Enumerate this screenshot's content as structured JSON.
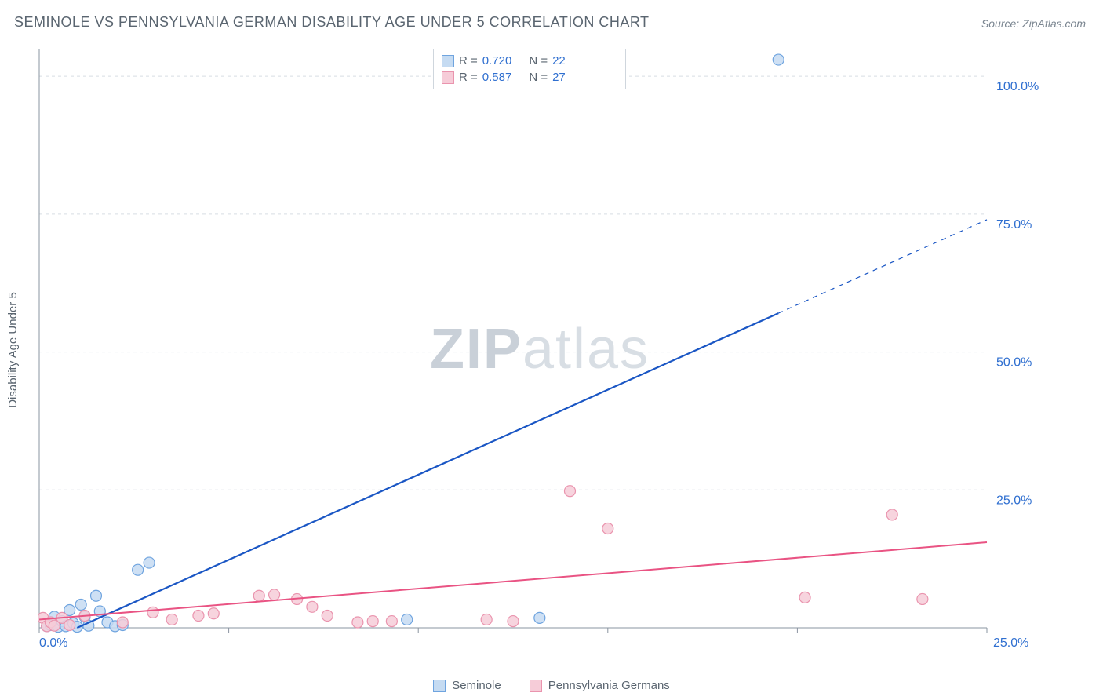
{
  "title": "SEMINOLE VS PENNSYLVANIA GERMAN DISABILITY AGE UNDER 5 CORRELATION CHART",
  "source": "Source: ZipAtlas.com",
  "y_axis_label": "Disability Age Under 5",
  "watermark": {
    "zip": "ZIP",
    "atlas": "atlas"
  },
  "chart": {
    "type": "scatter",
    "xlim": [
      0,
      25
    ],
    "ylim": [
      0,
      105
    ],
    "x_ticks": [
      0,
      5,
      10,
      15,
      20,
      25
    ],
    "y_ticks": [
      25,
      50,
      75,
      100
    ],
    "x_tick_labels": {
      "0": "0.0%",
      "25": "25.0%"
    },
    "y_tick_labels": {
      "25": "25.0%",
      "50": "50.0%",
      "75": "75.0%",
      "100": "100.0%"
    },
    "background_color": "#ffffff",
    "grid_color": "#d8dee4",
    "grid_dash": "4,4",
    "axis_label_color": "#2f6fd0",
    "series": [
      {
        "name": "Seminole",
        "marker_fill": "#c5dbf2",
        "marker_stroke": "#6fa4df",
        "marker_radius": 7,
        "line_color": "#1a56c4",
        "line_width": 2.2,
        "r_value": "0.720",
        "n_value": "22",
        "trend": {
          "x1": 1.0,
          "y1": 0.0,
          "x2": 25.0,
          "y2": 74.0,
          "solid_until_x": 19.5
        },
        "points": [
          [
            0.2,
            0.3
          ],
          [
            0.3,
            0.5
          ],
          [
            0.4,
            2.0
          ],
          [
            0.5,
            0.2
          ],
          [
            0.6,
            1.2
          ],
          [
            0.7,
            0.3
          ],
          [
            0.8,
            3.2
          ],
          [
            0.9,
            0.8
          ],
          [
            1.0,
            0.2
          ],
          [
            1.1,
            4.2
          ],
          [
            1.2,
            2.0
          ],
          [
            1.3,
            0.4
          ],
          [
            1.5,
            5.8
          ],
          [
            1.6,
            3.0
          ],
          [
            1.8,
            1.0
          ],
          [
            2.0,
            0.3
          ],
          [
            2.2,
            0.5
          ],
          [
            2.6,
            10.5
          ],
          [
            2.9,
            11.8
          ],
          [
            9.7,
            1.5
          ],
          [
            13.2,
            1.8
          ],
          [
            19.5,
            103.0
          ]
        ]
      },
      {
        "name": "Pennsylvania Germans",
        "marker_fill": "#f6ccd8",
        "marker_stroke": "#ea94ae",
        "marker_radius": 7,
        "line_color": "#e95383",
        "line_width": 2.0,
        "r_value": "0.587",
        "n_value": "27",
        "trend": {
          "x1": 0.0,
          "y1": 1.5,
          "x2": 25.0,
          "y2": 15.5,
          "solid_until_x": 25.0
        },
        "points": [
          [
            0.1,
            1.8
          ],
          [
            0.2,
            0.3
          ],
          [
            0.3,
            1.0
          ],
          [
            0.4,
            0.4
          ],
          [
            0.6,
            1.8
          ],
          [
            0.8,
            0.5
          ],
          [
            1.2,
            2.2
          ],
          [
            2.2,
            1.0
          ],
          [
            3.0,
            2.8
          ],
          [
            3.5,
            1.5
          ],
          [
            4.2,
            2.2
          ],
          [
            4.6,
            2.6
          ],
          [
            5.8,
            5.8
          ],
          [
            6.2,
            6.0
          ],
          [
            6.8,
            5.2
          ],
          [
            7.2,
            3.8
          ],
          [
            7.6,
            2.2
          ],
          [
            8.4,
            1.0
          ],
          [
            8.8,
            1.2
          ],
          [
            9.3,
            1.2
          ],
          [
            11.8,
            1.5
          ],
          [
            12.5,
            1.2
          ],
          [
            14.0,
            24.8
          ],
          [
            15.0,
            18.0
          ],
          [
            20.2,
            5.5
          ],
          [
            22.5,
            20.5
          ],
          [
            23.3,
            5.2
          ]
        ]
      }
    ]
  },
  "legend": {
    "r_prefix": "R =",
    "n_prefix": "N ="
  },
  "bottom_legend": {
    "items": [
      "Seminole",
      "Pennsylvania Germans"
    ]
  }
}
